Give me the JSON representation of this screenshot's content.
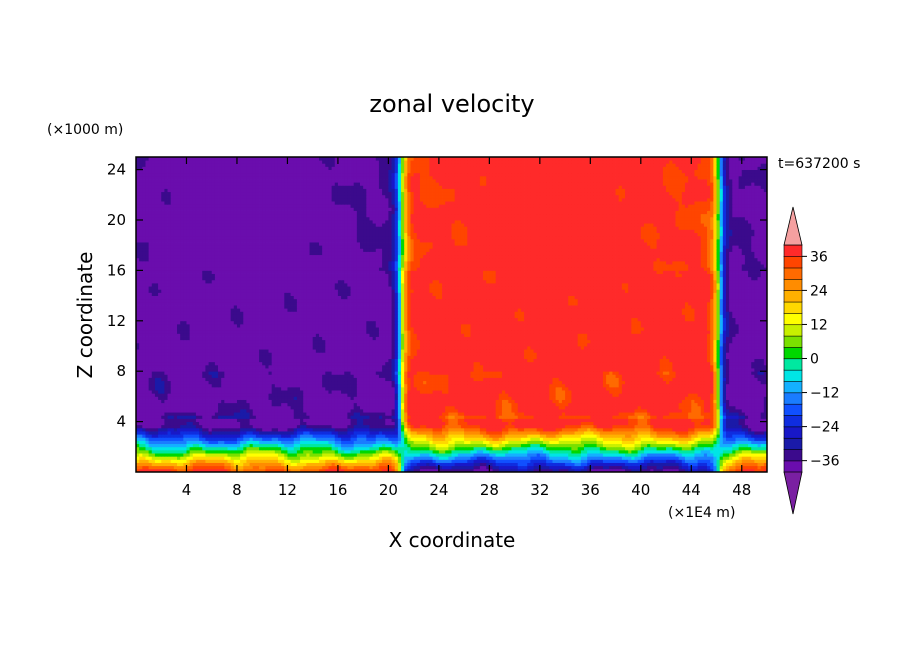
{
  "chart_data": {
    "type": "heatmap",
    "title": "zonal velocity",
    "xlabel": "X coordinate",
    "ylabel": "Z coordinate",
    "x_unit": "(×1E4 m)",
    "y_unit": "(×1000 m)",
    "time_label": "t=637200 s",
    "xlim": [
      0,
      50
    ],
    "ylim": [
      0,
      25
    ],
    "x_ticks": [
      "4",
      "8",
      "12",
      "16",
      "20",
      "24",
      "28",
      "32",
      "36",
      "40",
      "44",
      "48"
    ],
    "y_ticks": [
      "4",
      "8",
      "12",
      "16",
      "20",
      "24"
    ],
    "colorbar": {
      "levels": [
        -40,
        -36,
        -32,
        -28,
        -24,
        -20,
        -16,
        -12,
        -8,
        -4,
        0,
        4,
        8,
        12,
        16,
        20,
        24,
        28,
        32,
        36,
        40
      ],
      "tick_labels": [
        "36",
        "24",
        "12",
        "0",
        "−12",
        "−24",
        "−36"
      ],
      "colors": [
        "#6a0dad",
        "#3b0a8c",
        "#1a1aa8",
        "#1818c8",
        "#0f2de0",
        "#1050ff",
        "#1a7cff",
        "#14b0ff",
        "#00e5e5",
        "#00e8a0",
        "#00d800",
        "#7ae000",
        "#c8f000",
        "#ffff00",
        "#ffd800",
        "#ffb000",
        "#ff8c00",
        "#ff6a00",
        "#ff4500",
        "#ff2a2a"
      ],
      "extend_high_color": "#f5a0a0",
      "extend_low_color": "#7a1fa2"
    },
    "features": {
      "jet_regions_x": [
        [
          0,
          20.5
        ],
        [
          21.5,
          45.8
        ],
        [
          46.5,
          50
        ]
      ],
      "transition_x": [
        21.0,
        46.2
      ],
      "surface_layer_top_z": 4,
      "description_units": "x in 1E4 m, z in 1000 m"
    }
  }
}
